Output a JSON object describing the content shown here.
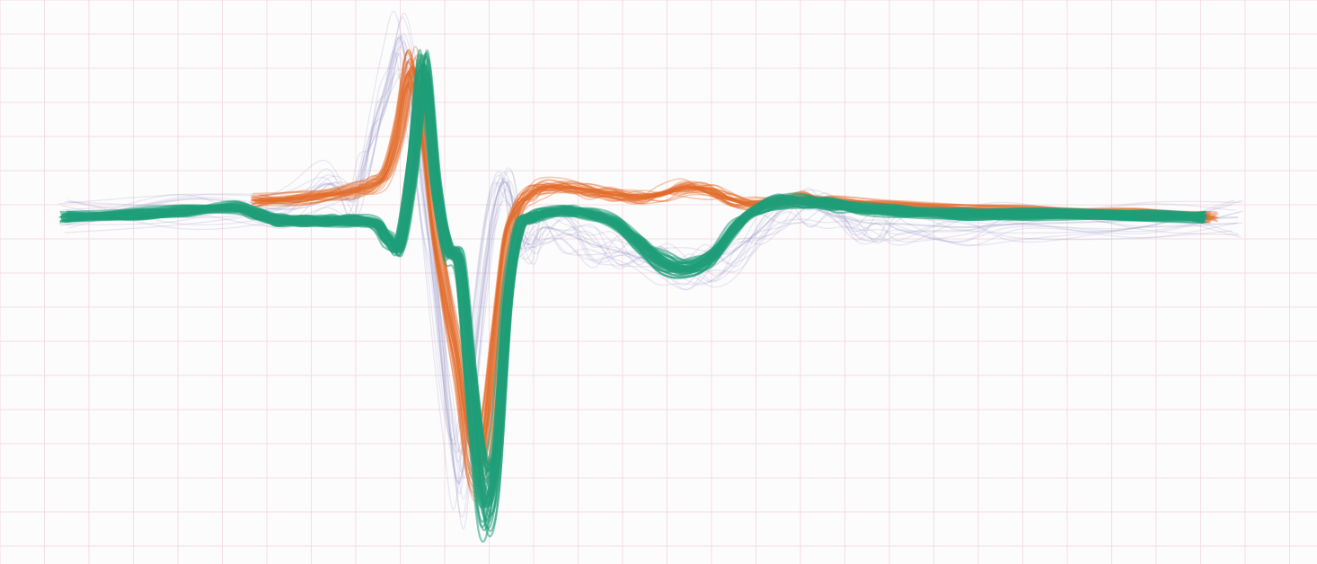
{
  "chart_data": {
    "type": "line",
    "title": "",
    "xlabel": "",
    "ylabel": "",
    "grid": true,
    "legend": "none",
    "xlim": [
      0,
      100
    ],
    "ylim": [
      -10,
      6
    ],
    "series": [
      {
        "color": "#9090c8",
        "opacity": 0.18,
        "stroke": 1.4,
        "n_traces": 14,
        "x": [
          0,
          10,
          18,
          22,
          24,
          25,
          26,
          27,
          28,
          29,
          30,
          31,
          32,
          33,
          34,
          35,
          36,
          37,
          38,
          39,
          40,
          42,
          44,
          46,
          48,
          50,
          52,
          54,
          56,
          58,
          60,
          62,
          64,
          66,
          68,
          70,
          75,
          80,
          90,
          98
        ],
        "values": [
          0,
          0.1,
          0.3,
          1.0,
          0.5,
          1.5,
          3.0,
          4.2,
          5.4,
          3.5,
          0.5,
          -2.5,
          -6.0,
          -8.0,
          -5.0,
          -1.5,
          0.5,
          1.0,
          -0.5,
          -0.8,
          -0.3,
          -0.5,
          -0.8,
          -1.0,
          -1.2,
          -1.4,
          -1.6,
          -1.5,
          -1.0,
          -0.4,
          0.2,
          0.3,
          0.1,
          -0.1,
          -0.2,
          -0.2,
          -0.3,
          -0.2,
          -0.1,
          0
        ]
      },
      {
        "color": "#e36a27",
        "opacity": 0.35,
        "stroke": 1.6,
        "n_traces": 32,
        "x": [
          16,
          20,
          24,
          26,
          27,
          28,
          29,
          30,
          31,
          32,
          33,
          34,
          35,
          36,
          37,
          38,
          39,
          40,
          42,
          44,
          46,
          48,
          50,
          52,
          54,
          56,
          58,
          60,
          62,
          64,
          70,
          80,
          90,
          96
        ],
        "values": [
          0.5,
          0.6,
          0.8,
          1.0,
          1.4,
          2.6,
          4.5,
          3.0,
          -0.2,
          -2.5,
          -4.5,
          -7.0,
          -7.2,
          -4.0,
          -0.8,
          0.3,
          0.7,
          0.9,
          0.9,
          0.8,
          0.7,
          0.6,
          0.7,
          0.9,
          0.8,
          0.5,
          0.4,
          0.5,
          0.6,
          0.5,
          0.3,
          0.2,
          0.1,
          0
        ]
      },
      {
        "color": "#1f9e78",
        "opacity": 0.55,
        "stroke": 2.2,
        "n_traces": 36,
        "x": [
          0,
          6,
          10,
          14,
          16,
          18,
          20,
          22,
          24,
          26,
          27,
          28,
          29,
          30,
          31,
          32,
          33,
          34,
          35,
          36,
          37,
          38,
          39,
          40,
          42,
          44,
          46,
          48,
          50,
          52,
          54,
          56,
          58,
          60,
          62,
          64,
          66,
          70,
          75,
          80,
          90,
          95
        ],
        "values": [
          0,
          0.1,
          0.2,
          0.3,
          0.1,
          -0.1,
          -0.1,
          -0.1,
          -0.1,
          -0.2,
          -0.7,
          -0.8,
          1.5,
          4.5,
          1.0,
          -1.0,
          -1.5,
          -5.5,
          -8.5,
          -7.5,
          -2.5,
          -0.3,
          0,
          0.1,
          0.2,
          0.1,
          -0.2,
          -0.8,
          -1.4,
          -1.6,
          -1.2,
          -0.3,
          0.3,
          0.5,
          0.5,
          0.4,
          0.3,
          0.2,
          0.1,
          0.1,
          0.05,
          0
        ]
      }
    ]
  }
}
